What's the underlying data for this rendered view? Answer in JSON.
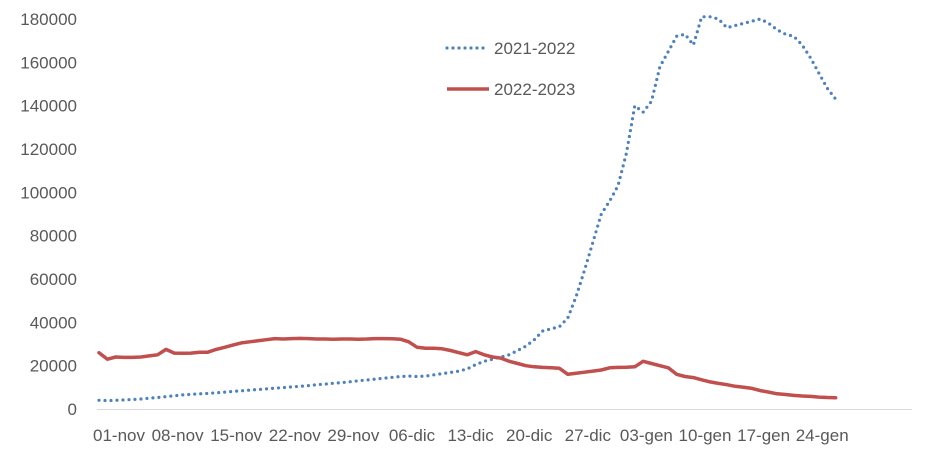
{
  "chart_data": {
    "type": "line",
    "title": "",
    "xlabel": "",
    "ylabel": "",
    "ylim": [
      0,
      180000
    ],
    "y_ticks": [
      0,
      20000,
      40000,
      60000,
      80000,
      100000,
      120000,
      140000,
      160000,
      180000
    ],
    "y_tick_labels": [
      "0",
      "20000",
      "40000",
      "60000",
      "80000",
      "100000",
      "120000",
      "140000",
      "160000",
      "180000"
    ],
    "x_tick_labels": [
      "01-nov",
      "08-nov",
      "15-nov",
      "22-nov",
      "29-nov",
      "06-dic",
      "13-dic",
      "20-dic",
      "27-dic",
      "03-gen",
      "10-gen",
      "17-gen",
      "24-gen"
    ],
    "grid": false,
    "legend": "top-center",
    "series": [
      {
        "name": "2021-2022",
        "color": "#4f81bd",
        "style": "dotted",
        "values": [
          4000,
          3900,
          4000,
          4200,
          4400,
          4600,
          5000,
          5300,
          5700,
          6100,
          6500,
          6800,
          7000,
          7200,
          7500,
          7800,
          8100,
          8400,
          8700,
          9000,
          9300,
          9600,
          9900,
          10200,
          10500,
          10800,
          11200,
          11500,
          11900,
          12200,
          12600,
          13000,
          13400,
          13800,
          14200,
          14600,
          15000,
          15200,
          15000,
          15200,
          15800,
          16300,
          16900,
          17500,
          18500,
          20500,
          22000,
          23000,
          24000,
          25000,
          27000,
          29000,
          32000,
          36000,
          37000,
          38000,
          42000,
          52000,
          64000,
          77000,
          90000,
          96000,
          103000,
          118000,
          140000,
          137000,
          142000,
          158000,
          165000,
          172000,
          173000,
          168000,
          181000,
          181000,
          180000,
          176000,
          177000,
          178000,
          179000,
          180000,
          178000,
          175000,
          173000,
          172000,
          168000,
          162000,
          155000,
          148000,
          143000
        ]
      },
      {
        "name": "2022-2023",
        "color": "#c0504d",
        "style": "solid",
        "values": [
          26000,
          23000,
          24000,
          23800,
          23800,
          24000,
          24500,
          25000,
          27500,
          25800,
          25700,
          25800,
          26200,
          26200,
          27500,
          28500,
          29500,
          30500,
          31000,
          31500,
          32000,
          32500,
          32300,
          32500,
          32600,
          32500,
          32300,
          32300,
          32200,
          32300,
          32300,
          32200,
          32300,
          32500,
          32500,
          32400,
          32200,
          31000,
          28500,
          28000,
          28000,
          27800,
          27000,
          26000,
          25000,
          26500,
          25000,
          24000,
          23500,
          22000,
          21000,
          20000,
          19500,
          19200,
          19000,
          18800,
          16000,
          16500,
          17000,
          17500,
          18000,
          19000,
          19200,
          19300,
          19500,
          22000,
          21000,
          20000,
          19000,
          16000,
          15000,
          14500,
          13500,
          12500,
          11800,
          11200,
          10500,
          10000,
          9500,
          8500,
          7800,
          7000,
          6700,
          6300,
          6000,
          5800,
          5500,
          5300,
          5200
        ]
      }
    ]
  }
}
